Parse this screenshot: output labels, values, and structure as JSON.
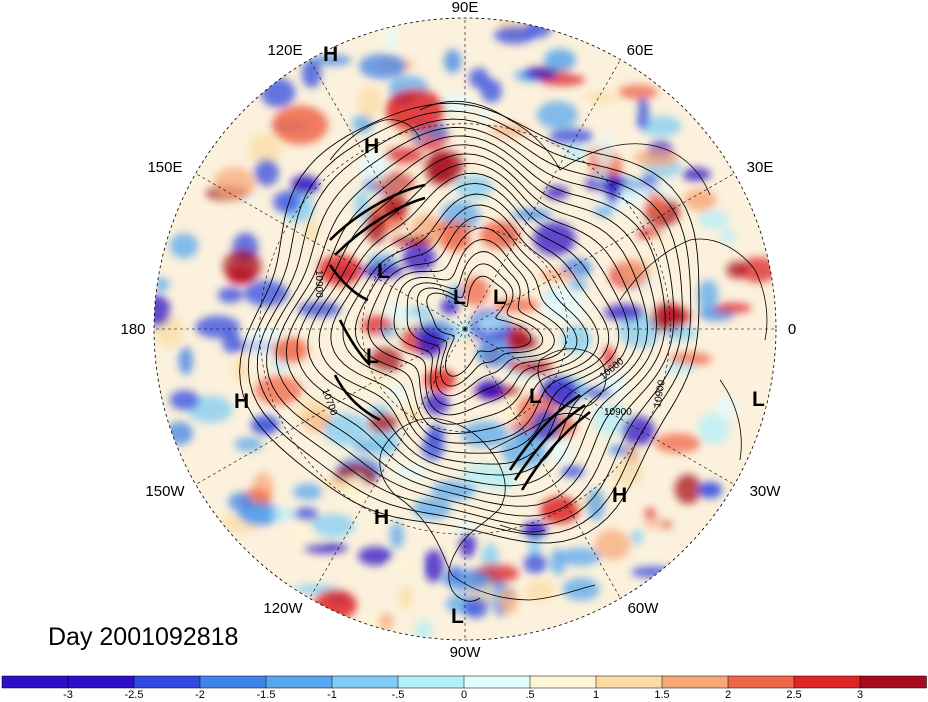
{
  "title": "Day 2001092818",
  "projection": "north-polar-stereographic",
  "longitude_labels": [
    "90E",
    "60E",
    "30E",
    "0",
    "30W",
    "60W",
    "90W",
    "120W",
    "150W",
    "180",
    "150E",
    "120E"
  ],
  "pressure_centers": [
    {
      "type": "H",
      "id": "h1"
    },
    {
      "type": "H",
      "id": "h2"
    },
    {
      "type": "L",
      "id": "l1"
    },
    {
      "type": "L",
      "id": "l2"
    },
    {
      "type": "L",
      "id": "l3"
    },
    {
      "type": "L",
      "id": "l4"
    },
    {
      "type": "L",
      "id": "l5"
    },
    {
      "type": "L",
      "id": "l6"
    },
    {
      "type": "H",
      "id": "h3"
    },
    {
      "type": "H",
      "id": "h4"
    },
    {
      "type": "H",
      "id": "h5"
    },
    {
      "type": "L",
      "id": "l7"
    }
  ],
  "contour_labels": [
    "10900",
    "10700",
    "10600",
    "10900",
    "10900"
  ],
  "colorbar": {
    "ticks": [
      "-3",
      "-2.5",
      "-2",
      "-1.5",
      "-1",
      "-.5",
      "0",
      ".5",
      "1",
      "1.5",
      "2",
      "2.5",
      "3"
    ],
    "colors": [
      "#2c0fc8",
      "#3049e0",
      "#3f84e8",
      "#58a7ee",
      "#80ccf4",
      "#b4eef8",
      "#e2fbfd",
      "#fdf6d6",
      "#fbdca6",
      "#f7a97a",
      "#f06648",
      "#de2426",
      "#a80b1e"
    ]
  },
  "colors": {
    "ocean_land_fill": "#fbf1dc",
    "contour": "#000000",
    "grid": "#000000"
  }
}
